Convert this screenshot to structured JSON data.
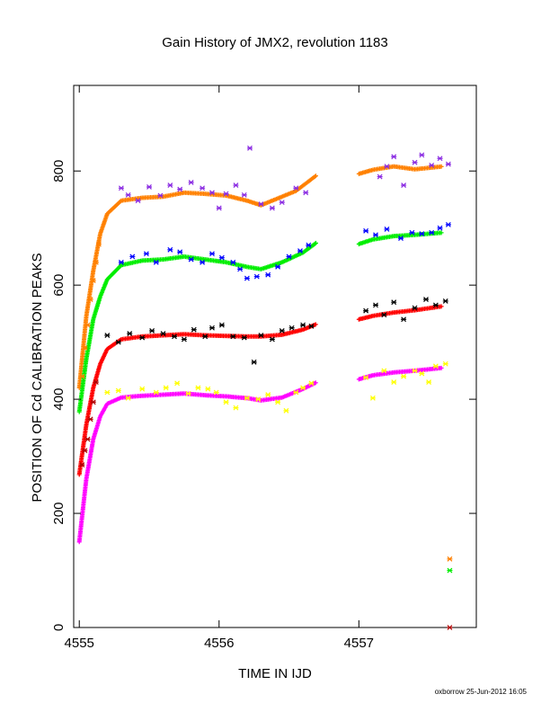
{
  "chart_data": {
    "type": "scatter",
    "title": "Gain History of JMX2, revolution 1183",
    "xlabel": "TIME IN IJD",
    "ylabel": "POSITION OF Cd CALIBRATION PEAKS",
    "xlim": [
      4554.96,
      4557.84
    ],
    "ylim": [
      0,
      950
    ],
    "xticks": [
      4555,
      4556,
      4557
    ],
    "yticks": [
      0,
      200,
      400,
      600,
      800
    ],
    "grid": false,
    "footer": "oxborrow 25-Jun-2012 16:05",
    "colors": {
      "orange": "#ff8000",
      "purple": "#8a2be2",
      "green": "#00ee00",
      "blue": "#0000ff",
      "red": "#ff0000",
      "black": "#000000",
      "magenta": "#ff00ff",
      "yellow": "#ffff00",
      "darkred": "#b00000"
    },
    "fit_series": [
      {
        "color": "orange",
        "segments": [
          [
            [
              4555.0,
              420
            ],
            [
              4555.05,
              545
            ],
            [
              4555.1,
              625
            ],
            [
              4555.15,
              690
            ],
            [
              4555.2,
              725
            ],
            [
              4555.3,
              748
            ],
            [
              4555.45,
              753
            ],
            [
              4555.6,
              755
            ],
            [
              4555.75,
              762
            ],
            [
              4555.9,
              760
            ],
            [
              4556.05,
              757
            ],
            [
              4556.2,
              748
            ],
            [
              4556.3,
              740
            ],
            [
              4556.4,
              750
            ],
            [
              4556.55,
              765
            ],
            [
              4556.7,
              793
            ]
          ],
          [
            [
              4557.0,
              795
            ],
            [
              4557.1,
              802
            ],
            [
              4557.25,
              808
            ],
            [
              4557.4,
              803
            ],
            [
              4557.6,
              808
            ]
          ]
        ]
      },
      {
        "color": "green",
        "segments": [
          [
            [
              4555.0,
              378
            ],
            [
              4555.05,
              470
            ],
            [
              4555.1,
              540
            ],
            [
              4555.15,
              580
            ],
            [
              4555.2,
              610
            ],
            [
              4555.3,
              635
            ],
            [
              4555.45,
              643
            ],
            [
              4555.6,
              645
            ],
            [
              4555.75,
              650
            ],
            [
              4555.9,
              645
            ],
            [
              4556.05,
              640
            ],
            [
              4556.2,
              632
            ],
            [
              4556.3,
              628
            ],
            [
              4556.45,
              640
            ],
            [
              4556.6,
              657
            ],
            [
              4556.7,
              675
            ]
          ],
          [
            [
              4557.0,
              672
            ],
            [
              4557.1,
              680
            ],
            [
              4557.25,
              686
            ],
            [
              4557.4,
              688
            ],
            [
              4557.6,
              692
            ]
          ]
        ]
      },
      {
        "color": "red",
        "segments": [
          [
            [
              4555.0,
              268
            ],
            [
              4555.05,
              355
            ],
            [
              4555.1,
              420
            ],
            [
              4555.15,
              462
            ],
            [
              4555.2,
              488
            ],
            [
              4555.3,
              505
            ],
            [
              4555.45,
              510
            ],
            [
              4555.6,
              512
            ],
            [
              4555.75,
              514
            ],
            [
              4555.9,
              512
            ],
            [
              4556.05,
              511
            ],
            [
              4556.2,
              510
            ],
            [
              4556.3,
              510
            ],
            [
              4556.45,
              513
            ],
            [
              4556.6,
              522
            ],
            [
              4556.7,
              532
            ]
          ],
          [
            [
              4557.0,
              540
            ],
            [
              4557.1,
              546
            ],
            [
              4557.25,
              552
            ],
            [
              4557.4,
              556
            ],
            [
              4557.6,
              563
            ]
          ]
        ]
      },
      {
        "color": "magenta",
        "segments": [
          [
            [
              4555.0,
              150
            ],
            [
              4555.05,
              260
            ],
            [
              4555.1,
              330
            ],
            [
              4555.15,
              370
            ],
            [
              4555.2,
              392
            ],
            [
              4555.3,
              403
            ],
            [
              4555.45,
              406
            ],
            [
              4555.6,
              408
            ],
            [
              4555.75,
              410
            ],
            [
              4555.9,
              407
            ],
            [
              4556.05,
              405
            ],
            [
              4556.2,
              402
            ],
            [
              4556.3,
              398
            ],
            [
              4556.45,
              403
            ],
            [
              4556.6,
              418
            ],
            [
              4556.7,
              430
            ]
          ],
          [
            [
              4557.0,
              435
            ],
            [
              4557.1,
              442
            ],
            [
              4557.25,
              447
            ],
            [
              4557.4,
              450
            ],
            [
              4557.6,
              455
            ]
          ]
        ]
      }
    ],
    "raw_series": [
      {
        "color": "purple",
        "points": [
          [
            4555.3,
            770
          ],
          [
            4555.35,
            758
          ],
          [
            4555.42,
            748
          ],
          [
            4555.5,
            772
          ],
          [
            4555.58,
            757
          ],
          [
            4555.65,
            775
          ],
          [
            4555.72,
            768
          ],
          [
            4555.8,
            780
          ],
          [
            4555.88,
            770
          ],
          [
            4555.95,
            762
          ],
          [
            4556.0,
            735
          ],
          [
            4556.05,
            760
          ],
          [
            4556.12,
            775
          ],
          [
            4556.18,
            758
          ],
          [
            4556.22,
            840
          ],
          [
            4556.3,
            742
          ],
          [
            4556.38,
            735
          ],
          [
            4556.45,
            745
          ],
          [
            4556.55,
            770
          ],
          [
            4556.62,
            762
          ],
          [
            4557.15,
            790
          ],
          [
            4557.2,
            808
          ],
          [
            4557.25,
            825
          ],
          [
            4557.32,
            775
          ],
          [
            4557.4,
            815
          ],
          [
            4557.45,
            828
          ],
          [
            4557.52,
            810
          ],
          [
            4557.58,
            822
          ],
          [
            4557.64,
            812
          ]
        ]
      },
      {
        "color": "blue",
        "points": [
          [
            4555.3,
            640
          ],
          [
            4555.38,
            650
          ],
          [
            4555.48,
            655
          ],
          [
            4555.55,
            640
          ],
          [
            4555.65,
            662
          ],
          [
            4555.72,
            658
          ],
          [
            4555.8,
            645
          ],
          [
            4555.88,
            640
          ],
          [
            4555.95,
            655
          ],
          [
            4556.02,
            648
          ],
          [
            4556.1,
            640
          ],
          [
            4556.15,
            628
          ],
          [
            4556.2,
            612
          ],
          [
            4556.27,
            615
          ],
          [
            4556.35,
            618
          ],
          [
            4556.42,
            632
          ],
          [
            4556.5,
            650
          ],
          [
            4556.58,
            660
          ],
          [
            4556.64,
            670
          ],
          [
            4557.05,
            695
          ],
          [
            4557.12,
            688
          ],
          [
            4557.2,
            698
          ],
          [
            4557.3,
            682
          ],
          [
            4557.38,
            692
          ],
          [
            4557.45,
            690
          ],
          [
            4557.52,
            692
          ],
          [
            4557.58,
            700
          ],
          [
            4557.64,
            706
          ]
        ]
      },
      {
        "color": "black",
        "points": [
          [
            4555.2,
            512
          ],
          [
            4555.28,
            500
          ],
          [
            4555.36,
            515
          ],
          [
            4555.45,
            508
          ],
          [
            4555.52,
            520
          ],
          [
            4555.6,
            515
          ],
          [
            4555.68,
            510
          ],
          [
            4555.75,
            505
          ],
          [
            4555.82,
            522
          ],
          [
            4555.9,
            510
          ],
          [
            4555.95,
            525
          ],
          [
            4556.02,
            530
          ],
          [
            4556.1,
            510
          ],
          [
            4556.18,
            508
          ],
          [
            4556.25,
            465
          ],
          [
            4556.3,
            512
          ],
          [
            4556.38,
            505
          ],
          [
            4556.45,
            520
          ],
          [
            4556.52,
            525
          ],
          [
            4556.6,
            530
          ],
          [
            4556.66,
            528
          ],
          [
            4557.05,
            555
          ],
          [
            4557.12,
            565
          ],
          [
            4557.18,
            548
          ],
          [
            4557.25,
            570
          ],
          [
            4557.32,
            540
          ],
          [
            4557.4,
            560
          ],
          [
            4557.48,
            575
          ],
          [
            4557.55,
            565
          ],
          [
            4557.62,
            572
          ]
        ]
      },
      {
        "color": "yellow",
        "points": [
          [
            4555.2,
            412
          ],
          [
            4555.28,
            415
          ],
          [
            4555.35,
            402
          ],
          [
            4555.45,
            418
          ],
          [
            4555.55,
            412
          ],
          [
            4555.62,
            420
          ],
          [
            4555.7,
            428
          ],
          [
            4555.78,
            410
          ],
          [
            4555.85,
            420
          ],
          [
            4555.92,
            418
          ],
          [
            4555.98,
            412
          ],
          [
            4556.05,
            395
          ],
          [
            4556.12,
            385
          ],
          [
            4556.2,
            402
          ],
          [
            4556.28,
            400
          ],
          [
            4556.35,
            408
          ],
          [
            4556.42,
            395
          ],
          [
            4556.48,
            380
          ],
          [
            4556.55,
            412
          ],
          [
            4556.6,
            420
          ],
          [
            4556.66,
            428
          ],
          [
            4557.05,
            438
          ],
          [
            4557.1,
            402
          ],
          [
            4557.18,
            450
          ],
          [
            4557.25,
            430
          ],
          [
            4557.32,
            440
          ],
          [
            4557.4,
            450
          ],
          [
            4557.45,
            445
          ],
          [
            4557.5,
            430
          ],
          [
            4557.55,
            458
          ],
          [
            4557.62,
            462
          ]
        ]
      },
      {
        "color": "orange",
        "points": [
          [
            4555.02,
            440
          ],
          [
            4555.04,
            490
          ],
          [
            4555.06,
            530
          ],
          [
            4555.08,
            575
          ],
          [
            4555.1,
            608
          ],
          [
            4555.12,
            640
          ],
          [
            4555.14,
            672
          ],
          [
            4557.65,
            120
          ]
        ]
      },
      {
        "color": "darkred",
        "points": [
          [
            4555.02,
            285
          ],
          [
            4555.04,
            310
          ],
          [
            4555.06,
            330
          ],
          [
            4555.08,
            365
          ],
          [
            4555.1,
            395
          ],
          [
            4555.12,
            430
          ],
          [
            4557.65,
            0
          ]
        ]
      },
      {
        "color": "green",
        "points": [
          [
            4557.65,
            100
          ]
        ]
      }
    ]
  }
}
